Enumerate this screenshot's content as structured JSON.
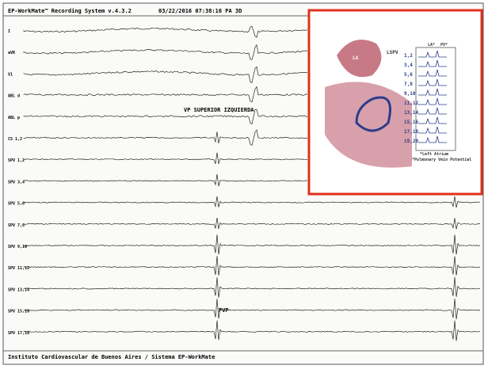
{
  "header": {
    "title": "EP-WorkMate™ Recording System v.4.3.2",
    "timestamp": "03/22/2016 07:38:16 PA 3D"
  },
  "channels": [
    "I",
    "aVR",
    "V1",
    "ABL d",
    "ABL p",
    "CS 1,2",
    "SPV 1,2",
    "SPV 3,4",
    "SPV 5,6",
    "SPV 7,8",
    "SPV 9,10",
    "SPV 11,12",
    "SPV 13,14",
    "SPV 15,16",
    "SPV 17,18"
  ],
  "annotations": {
    "region": "VP SUPERIOR IZQUIERDA",
    "potential": "PVP"
  },
  "footer": "Instituto Cardiovascular de Buenos Aires / Sistema EP-WorkMate",
  "inset": {
    "vein_label": "LSPV",
    "atrium_label": "LA",
    "column_headers": [
      "LA*",
      "PV*"
    ],
    "pairs": [
      "1,2",
      "3,4",
      "5,6",
      "7,8",
      "9,10",
      "11,12",
      "13,14",
      "15,16",
      "17,18",
      "19,20"
    ],
    "legend": [
      "*Left Atrium",
      "*Pulmonary Vein Potential"
    ]
  }
}
